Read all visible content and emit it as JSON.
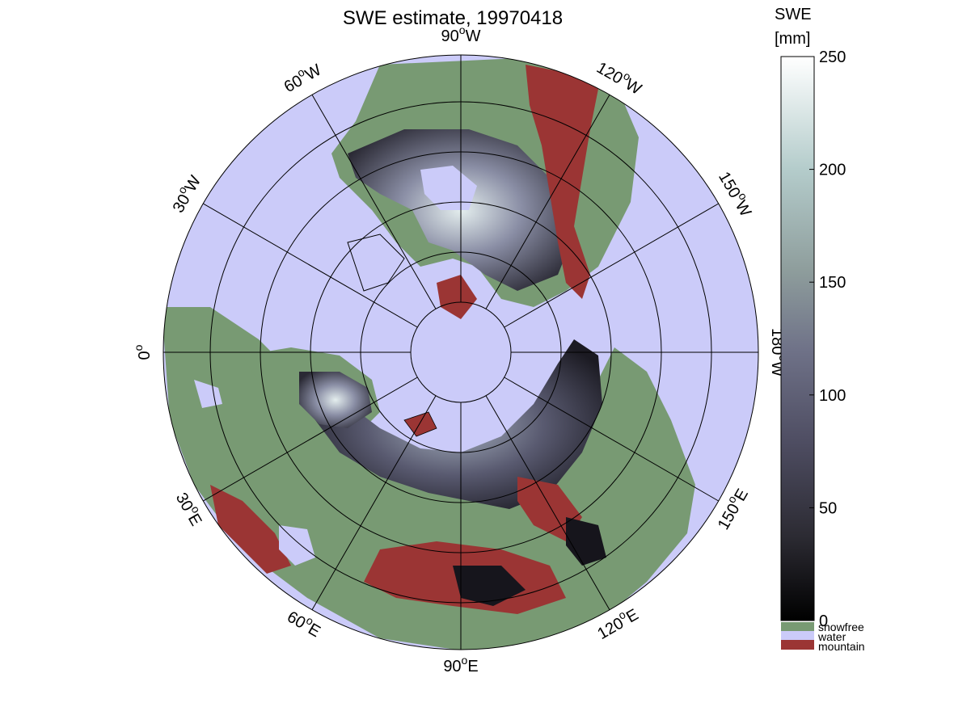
{
  "title": "SWE estimate, 19970418",
  "colorbar": {
    "title_line1": "SWE",
    "title_line2": "[mm]",
    "min": 0,
    "max": 250,
    "ticks": [
      "250",
      "200",
      "150",
      "100",
      "50",
      "0"
    ],
    "gradient_colors": [
      "#000000",
      "#2c2b33",
      "#4f4e63",
      "#6f7288",
      "#8e9d9c",
      "#b4cccb",
      "#ffffff"
    ],
    "categories": [
      {
        "label": "snowfree",
        "color": "#789a73"
      },
      {
        "label": "water",
        "color": "#cbcbf9"
      },
      {
        "label": "mountain",
        "color": "#9b3534"
      }
    ]
  },
  "map": {
    "projection": "polar stereographic (north pole)",
    "colors": {
      "water": "#cbcbf9",
      "land": "#789a73",
      "mountain": "#9b3534",
      "snow_dark": "#16151c",
      "snow_mid": "#5e5f74",
      "snow_light": "#dfe9e9"
    },
    "longitude_labels": [
      {
        "value": "90",
        "hemi": "W"
      },
      {
        "value": "120",
        "hemi": "W"
      },
      {
        "value": "150",
        "hemi": "W"
      },
      {
        "value": "180",
        "hemi": "W"
      },
      {
        "value": "150",
        "hemi": "E"
      },
      {
        "value": "120",
        "hemi": "E"
      },
      {
        "value": "90",
        "hemi": "E"
      },
      {
        "value": "60",
        "hemi": "E"
      },
      {
        "value": "30",
        "hemi": "E"
      },
      {
        "value": "0",
        "hemi": ""
      },
      {
        "value": "30",
        "hemi": "W"
      },
      {
        "value": "60",
        "hemi": "W"
      }
    ]
  }
}
